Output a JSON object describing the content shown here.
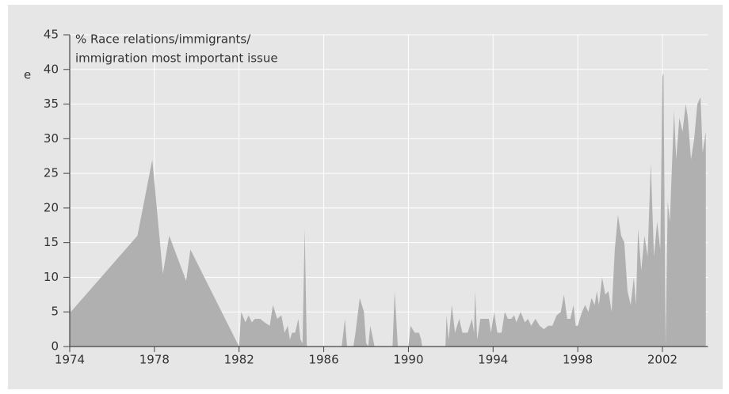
{
  "chart_data": {
    "type": "area",
    "title": [
      "% Race relations/immigrants/",
      "immigration most important issue"
    ],
    "clipped_label": "e",
    "color": "#b0b0b0",
    "grid": true,
    "xlim": [
      1974,
      2004.15
    ],
    "ylim": [
      0,
      45
    ],
    "xticks": [
      1974,
      1978,
      1982,
      1986,
      1990,
      1994,
      1998,
      2002
    ],
    "yticks": [
      0,
      5,
      10,
      15,
      20,
      25,
      30,
      35,
      40,
      45
    ],
    "x": [
      1974.0,
      1974.05,
      1977.2,
      1977.9,
      1978.4,
      1978.7,
      1979.5,
      1979.7,
      1982.0,
      1982.1,
      1982.3,
      1982.45,
      1982.6,
      1982.75,
      1983.0,
      1983.2,
      1983.45,
      1983.6,
      1983.8,
      1984.0,
      1984.15,
      1984.3,
      1984.4,
      1984.5,
      1984.65,
      1984.8,
      1984.9,
      1985.0,
      1985.1,
      1985.2,
      1986.85,
      1987.0,
      1987.1,
      1987.4,
      1987.5,
      1987.7,
      1987.9,
      1988.0,
      1988.1,
      1988.2,
      1988.4,
      1989.25,
      1989.35,
      1989.5,
      1990.0,
      1990.1,
      1990.3,
      1990.5,
      1990.6,
      1990.65,
      1991.75,
      1991.8,
      1991.9,
      1992.05,
      1992.2,
      1992.4,
      1992.55,
      1992.8,
      1993.0,
      1993.1,
      1993.15,
      1993.25,
      1993.4,
      1993.6,
      1993.8,
      1993.9,
      1994.05,
      1994.2,
      1994.4,
      1994.55,
      1994.7,
      1994.85,
      1995.0,
      1995.1,
      1995.3,
      1995.5,
      1995.65,
      1995.8,
      1996.0,
      1996.2,
      1996.4,
      1996.6,
      1996.8,
      1997.0,
      1997.2,
      1997.35,
      1997.5,
      1997.65,
      1997.8,
      1997.9,
      1998.0,
      1998.2,
      1998.35,
      1998.5,
      1998.65,
      1998.8,
      1998.9,
      1999.0,
      1999.15,
      1999.3,
      1999.45,
      1999.6,
      1999.75,
      1999.9,
      2000.05,
      2000.2,
      2000.35,
      2000.5,
      2000.65,
      2000.75,
      2000.85,
      2001.0,
      2001.15,
      2001.3,
      2001.45,
      2001.6,
      2001.75,
      2001.9,
      2002.0,
      2002.05,
      2002.15,
      2002.25,
      2002.35,
      2002.55,
      2002.65,
      2002.8,
      2002.95,
      2003.1,
      2003.2,
      2003.35,
      2003.5,
      2003.65,
      2003.8,
      2003.9,
      2004.05
    ],
    "values": [
      7,
      5,
      16,
      27,
      10.5,
      16,
      9.5,
      14,
      0,
      5,
      3.5,
      4.5,
      3.5,
      4,
      4,
      3.5,
      3,
      6,
      4,
      4.5,
      2,
      3,
      1,
      2,
      2,
      4,
      1,
      0.5,
      17,
      0,
      0,
      4,
      0,
      0,
      2,
      7,
      5,
      0.5,
      0,
      3,
      0,
      0,
      8,
      0,
      0,
      3,
      2,
      2,
      1,
      0,
      0,
      4.5,
      1,
      6,
      2,
      4,
      2,
      2,
      4,
      2,
      8,
      1,
      4,
      4,
      4,
      2,
      5,
      2,
      2,
      5,
      4,
      4,
      4.5,
      3.5,
      5,
      3.5,
      4,
      3,
      4,
      3,
      2.5,
      3,
      3,
      4.5,
      5,
      7.5,
      4,
      4,
      6,
      3,
      3,
      5,
      6,
      5,
      7,
      6,
      8,
      6,
      10,
      7.5,
      8,
      5,
      14,
      19,
      16,
      15,
      8,
      6,
      10,
      6,
      17,
      11,
      16,
      13,
      26.5,
      13,
      18,
      14,
      39,
      39.5,
      0,
      21,
      18,
      34,
      27,
      33,
      31,
      35,
      33,
      27,
      30,
      35,
      36,
      28,
      31
    ]
  }
}
